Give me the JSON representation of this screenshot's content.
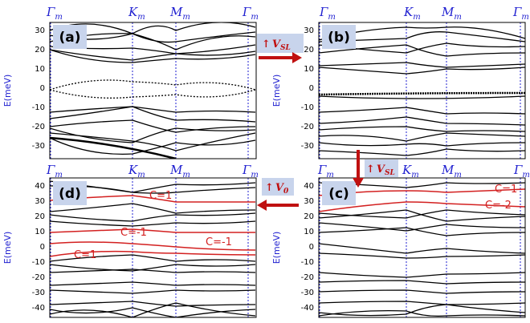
{
  "y_axis_label": "E(meV)",
  "high_symmetry_labels": [
    {
      "main": "Γ",
      "sub": "m"
    },
    {
      "main": "K",
      "sub": "m"
    },
    {
      "main": "M",
      "sub": "m"
    },
    {
      "main": "Γ",
      "sub": "m"
    }
  ],
  "panels": [
    {
      "id": "a",
      "label": "(a)",
      "ylim": [
        -35,
        35
      ],
      "ticks": [
        30,
        20,
        10,
        0,
        -10,
        -20,
        -30
      ]
    },
    {
      "id": "b",
      "label": "(b)",
      "ylim": [
        -35,
        35
      ],
      "ticks": [
        30,
        20,
        10,
        0,
        -10,
        -20,
        -30
      ]
    },
    {
      "id": "d",
      "label": "(d)",
      "ylim": [
        -45,
        45
      ],
      "ticks": [
        40,
        30,
        20,
        10,
        0,
        -10,
        -20,
        -30,
        -40
      ]
    },
    {
      "id": "c",
      "label": "(c)",
      "ylim": [
        -45,
        45
      ],
      "ticks": [
        40,
        30,
        20,
        10,
        0,
        -10,
        -20,
        -30,
        -40
      ]
    }
  ],
  "arrows": [
    {
      "id": "a_to_b",
      "text": "↑",
      "param": "V",
      "sub": "SL",
      "color": "#c01010"
    },
    {
      "id": "b_to_c",
      "text": "↑",
      "param": "V",
      "sub": "SL",
      "color": "#c01010"
    },
    {
      "id": "c_to_d",
      "text": "↑",
      "param": "V",
      "sub": "0",
      "color": "#c01010"
    }
  ],
  "chern_labels_d": [
    "C=1",
    "C=-1",
    "C=-1",
    "C=1"
  ],
  "chern_labels_c": [
    "C=1",
    "C=-2"
  ],
  "colors": {
    "bands": "#000000",
    "chern_bands": "#d32020",
    "symmetry_lines": "#1f1fd0"
  }
}
